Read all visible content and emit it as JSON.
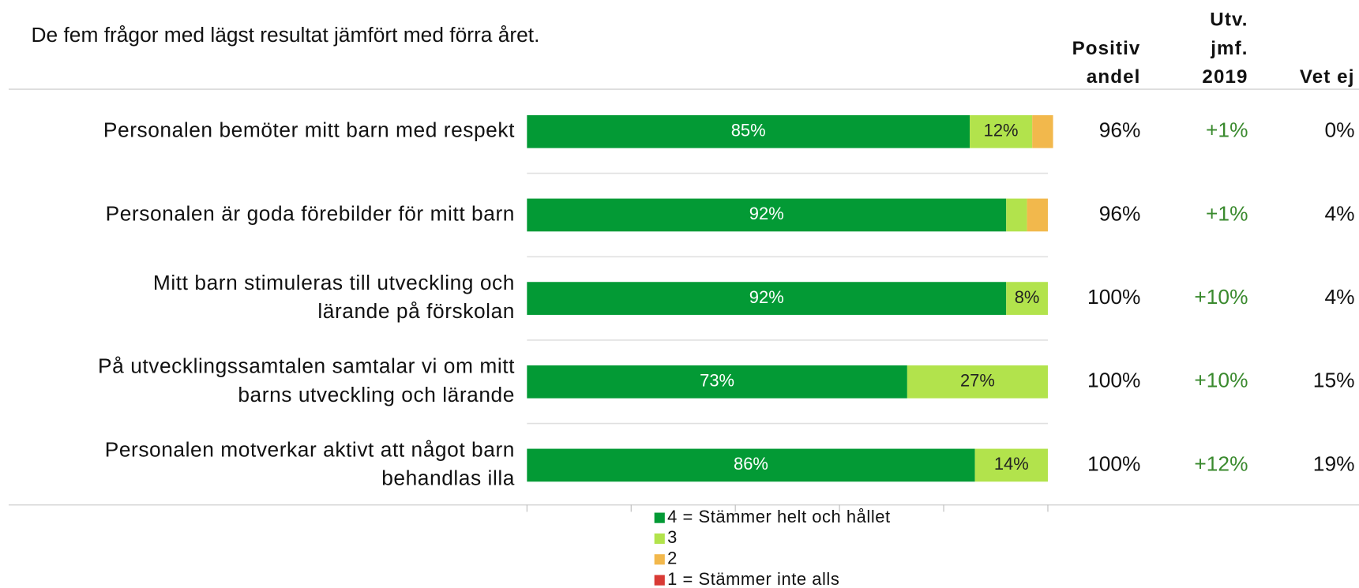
{
  "chart_data": {
    "type": "stacked_barh",
    "title": "De fem frågor med lägst resultat jämfört med förra året.",
    "categories": [
      [
        "Personalen bemöter mitt barn med respekt"
      ],
      [
        "Personalen är goda förebilder för mitt barn"
      ],
      [
        "Mitt barn stimuleras till utveckling och",
        "lärande på förskolan"
      ],
      [
        "På utvecklingssamtalen samtalar vi om mitt",
        "barns utveckling och lärande"
      ],
      [
        "Personalen motverkar aktivt att något barn",
        "behandlas illa"
      ]
    ],
    "series": [
      {
        "name": "4 = Stämmer helt och hållet",
        "color": "#039a35",
        "label_color": "#ffffff",
        "values": [
          85,
          92,
          92,
          73,
          86
        ],
        "value_labels": [
          "85%",
          "92%",
          "92%",
          "73%",
          "86%"
        ]
      },
      {
        "name": "3",
        "color": "#b2e34c",
        "label_color": "#222222",
        "values": [
          12,
          4,
          8,
          27,
          14
        ],
        "value_labels": [
          "12%",
          null,
          "8%",
          "27%",
          "14%"
        ]
      },
      {
        "name": "2",
        "color": "#f2b84c",
        "label_color": "#222222",
        "values": [
          4,
          4,
          0,
          0,
          0
        ],
        "value_labels": [
          null,
          null,
          null,
          null,
          null
        ]
      },
      {
        "name": "1 = Stämmer inte alls",
        "color": "#d93a35",
        "label_color": "#ffffff",
        "values": [
          0,
          0,
          0,
          0,
          0
        ],
        "value_labels": [
          null,
          null,
          null,
          null,
          null
        ]
      }
    ],
    "xlim": [
      0,
      100
    ],
    "xticks": [
      0,
      20,
      40,
      60,
      80,
      100
    ],
    "columns": [
      {
        "header_lines": [
          "Positiv",
          "andel"
        ],
        "color": "#111111",
        "values": [
          "96%",
          "96%",
          "100%",
          "100%",
          "100%"
        ]
      },
      {
        "header_lines": [
          "Utv.",
          "jmf.",
          "2019"
        ],
        "color": "#3a8a2e",
        "values": [
          "+1%",
          "+1%",
          "+10%",
          "+10%",
          "+12%"
        ]
      },
      {
        "header_lines": [
          "Vet ej"
        ],
        "color": "#111111",
        "values": [
          "0%",
          "4%",
          "4%",
          "15%",
          "19%"
        ]
      }
    ]
  }
}
